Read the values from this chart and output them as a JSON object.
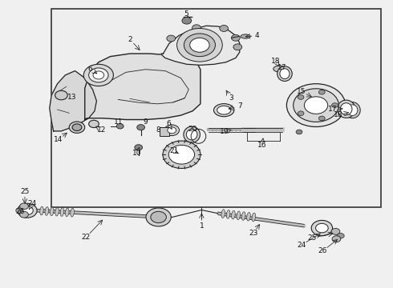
{
  "background_color": "#f0f0f0",
  "box_background": "#f0f0f0",
  "box_border_color": "#333333",
  "line_color": "#222222",
  "label_color": "#111111",
  "figsize": [
    4.9,
    3.6
  ],
  "dpi": 100
}
